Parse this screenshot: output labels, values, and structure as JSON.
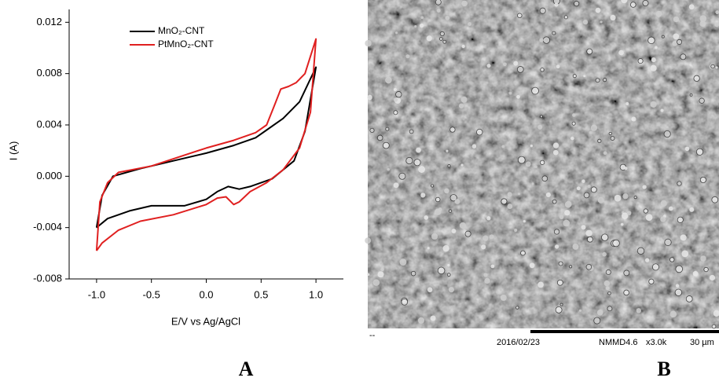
{
  "chart_data": {
    "type": "line",
    "xlabel": "E/V vs Ag/AgCl",
    "ylabel": "I (A)",
    "xlim": [
      -1.25,
      1.25
    ],
    "ylim": [
      -0.008,
      0.013
    ],
    "xticks": [
      {
        "value": -1.0,
        "label": "-1.0"
      },
      -0.5,
      {
        "value": 0,
        "label": "0.0"
      },
      0.5,
      {
        "value": 1.0,
        "label": "1.0"
      }
    ],
    "yticks": [
      -0.008,
      -0.004,
      {
        "value": 0,
        "label": "0.000"
      },
      0.004,
      0.008,
      0.012
    ],
    "legend": "upper left",
    "series": [
      {
        "name": "MnO₂-CNT",
        "color": "#000000",
        "x": [
          -1.0,
          -0.95,
          -0.85,
          -0.6,
          -0.5,
          -0.3,
          0.0,
          0.25,
          0.45,
          0.55,
          0.7,
          0.85,
          1.0,
          0.9,
          0.8,
          0.6,
          0.4,
          0.3,
          0.2,
          0.1,
          0.0,
          -0.2,
          -0.5,
          -0.7,
          -0.9,
          -1.0
        ],
        "values": [
          -0.004,
          -0.0015,
          0.0,
          0.0006,
          0.0008,
          0.0012,
          0.0018,
          0.0024,
          0.003,
          0.0036,
          0.0045,
          0.0058,
          0.0085,
          0.0035,
          0.0012,
          -0.0002,
          -0.0008,
          -0.001,
          -0.0008,
          -0.0012,
          -0.0018,
          -0.0023,
          -0.0023,
          -0.0027,
          -0.0033,
          -0.004
        ]
      },
      {
        "name": "PtMnO₂-CNT",
        "color": "#e02020",
        "x": [
          -1.0,
          -0.97,
          -0.9,
          -0.8,
          -0.5,
          0.0,
          0.25,
          0.45,
          0.55,
          0.62,
          0.68,
          0.75,
          0.82,
          0.9,
          1.0,
          0.95,
          0.85,
          0.7,
          0.55,
          0.4,
          0.3,
          0.25,
          0.18,
          0.1,
          0.0,
          -0.3,
          -0.6,
          -0.8,
          -0.95,
          -1.0
        ],
        "values": [
          -0.0058,
          -0.002,
          -0.0005,
          0.0003,
          0.0008,
          0.0022,
          0.0028,
          0.0034,
          0.004,
          0.0055,
          0.0068,
          0.007,
          0.0073,
          0.008,
          0.0107,
          0.005,
          0.0022,
          0.0005,
          -0.0005,
          -0.0012,
          -0.002,
          -0.0022,
          -0.0016,
          -0.0017,
          -0.0022,
          -0.003,
          -0.0035,
          -0.0042,
          -0.0052,
          -0.0058
        ]
      }
    ]
  },
  "panels": {
    "left": "A",
    "right": "B"
  },
  "sem": {
    "marker": "--",
    "date": "2016/02/23",
    "code": "NMMD4.6",
    "magnification": "x3.0k",
    "scale": "30 µm"
  }
}
